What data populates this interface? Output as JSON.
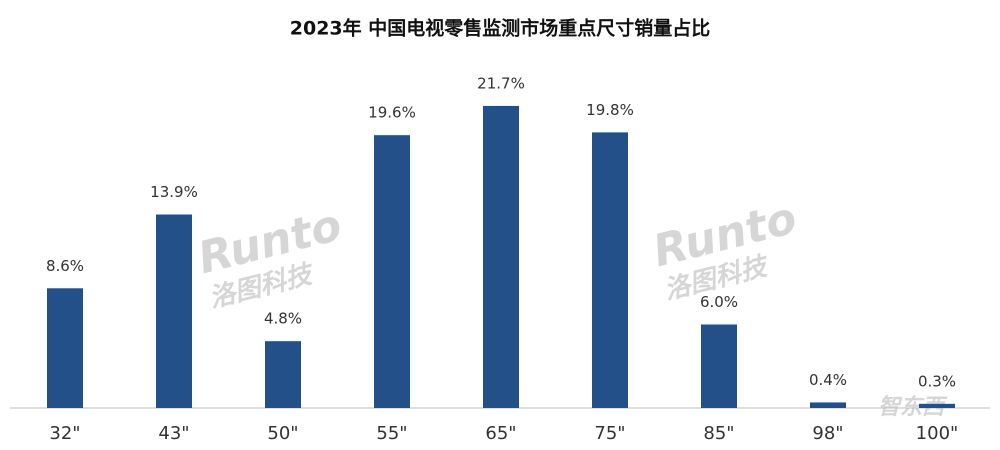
{
  "chart_data": {
    "type": "bar",
    "title": "2023年 中国电视零售监测市场重点尺寸销量占比",
    "categories": [
      "32\"",
      "43\"",
      "50\"",
      "55\"",
      "65\"",
      "75\"",
      "85\"",
      "98\"",
      "100\""
    ],
    "values": [
      8.6,
      13.9,
      4.8,
      19.6,
      21.7,
      19.8,
      6.0,
      0.4,
      0.3
    ],
    "value_labels": [
      "8.6%",
      "13.9%",
      "4.8%",
      "19.6%",
      "21.7%",
      "19.8%",
      "6.0%",
      "0.4%",
      "0.3%"
    ],
    "color": "#24508a",
    "watermarks": [
      "Runto",
      "洛图科技",
      "Runto",
      "洛图科技",
      "智东西"
    ]
  }
}
